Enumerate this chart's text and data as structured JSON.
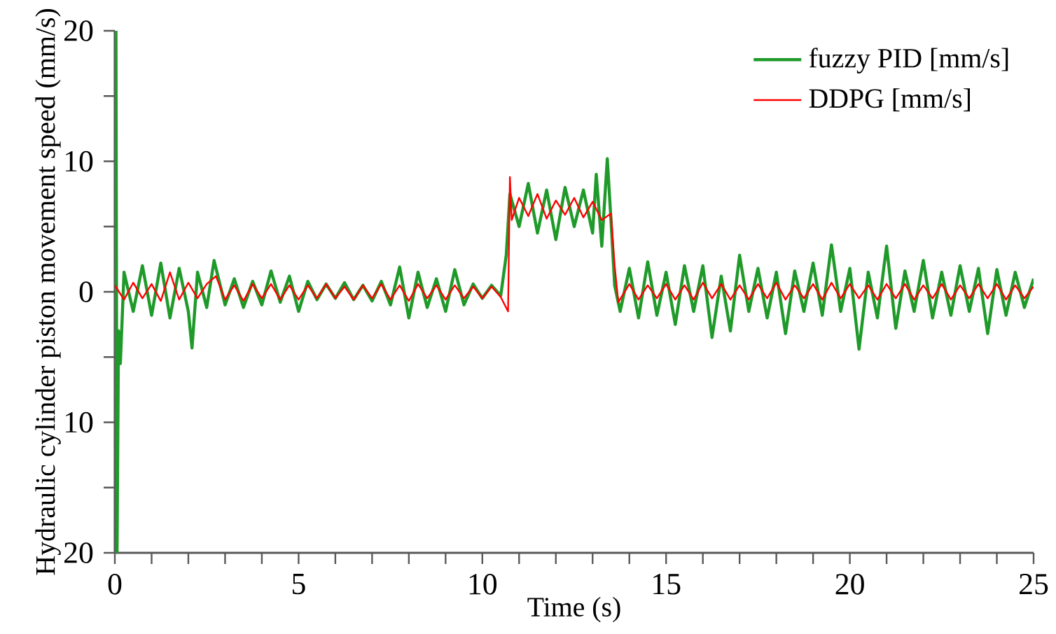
{
  "chart_data": {
    "type": "line",
    "xlabel": "Time (s)",
    "ylabel": "Hydraulic cylinder piston movement speed (mm/s)",
    "xlim": [
      0,
      25
    ],
    "ylim": [
      -20,
      20
    ],
    "xticks": [
      0,
      {
        "value": 1,
        "label": null
      },
      {
        "value": 2,
        "label": null
      },
      {
        "value": 3,
        "label": null
      },
      {
        "value": 4,
        "label": null
      },
      5,
      {
        "value": 6,
        "label": null
      },
      {
        "value": 7,
        "label": null
      },
      {
        "value": 8,
        "label": null
      },
      {
        "value": 9,
        "label": null
      },
      10,
      {
        "value": 11,
        "label": null
      },
      {
        "value": 12,
        "label": null
      },
      {
        "value": 13,
        "label": null
      },
      {
        "value": 14,
        "label": null
      },
      15,
      {
        "value": 16,
        "label": null
      },
      {
        "value": 17,
        "label": null
      },
      {
        "value": 18,
        "label": null
      },
      {
        "value": 19,
        "label": null
      },
      20,
      {
        "value": 21,
        "label": null
      },
      {
        "value": 22,
        "label": null
      },
      {
        "value": 23,
        "label": null
      },
      {
        "value": 24,
        "label": null
      },
      25
    ],
    "yticks": [
      {
        "value": -20,
        "label": "20"
      },
      {
        "value": -15,
        "label": null
      },
      {
        "value": -10,
        "label": "10"
      },
      {
        "value": -5,
        "label": null
      },
      0,
      {
        "value": 5,
        "label": null
      },
      10,
      {
        "value": 15,
        "label": null
      },
      20
    ],
    "grid": false,
    "legend": "top right",
    "marker": "none",
    "line_style": "solid",
    "series": [
      {
        "name": "fuzzy PID [mm/s]",
        "color": "#1f9a2a",
        "x": [
          0,
          0.03,
          0.06,
          0.1,
          0.15,
          0.2,
          0.25,
          0.5,
          0.75,
          1.0,
          1.25,
          1.5,
          1.75,
          2.0,
          2.1,
          2.25,
          2.5,
          2.7,
          3.0,
          3.25,
          3.5,
          3.75,
          4.0,
          4.25,
          4.5,
          4.75,
          5.0,
          5.25,
          5.5,
          5.75,
          6.0,
          6.25,
          6.5,
          6.75,
          7.0,
          7.25,
          7.5,
          7.75,
          8.0,
          8.25,
          8.5,
          8.75,
          9.0,
          9.25,
          9.5,
          9.75,
          10.0,
          10.25,
          10.5,
          10.65,
          10.75,
          11.0,
          11.25,
          11.5,
          11.75,
          12.0,
          12.25,
          12.5,
          12.75,
          13.0,
          13.1,
          13.25,
          13.4,
          13.5,
          13.6,
          13.75,
          14.0,
          14.25,
          14.5,
          14.75,
          15.0,
          15.25,
          15.5,
          15.75,
          16.0,
          16.25,
          16.5,
          16.75,
          17.0,
          17.25,
          17.5,
          17.75,
          18.0,
          18.25,
          18.5,
          18.75,
          19.0,
          19.25,
          19.5,
          19.75,
          20.0,
          20.25,
          20.5,
          20.75,
          21.0,
          21.25,
          21.5,
          21.75,
          22.0,
          22.25,
          22.5,
          22.75,
          23.0,
          23.25,
          23.5,
          23.75,
          24.0,
          24.25,
          24.5,
          24.75,
          25.0
        ],
        "values": [
          0,
          20,
          -20,
          -3,
          -5.5,
          -2,
          1.5,
          -1.5,
          2,
          -1.8,
          2.2,
          -2,
          1.8,
          -1.5,
          -4.3,
          1.5,
          -1.2,
          2.4,
          -1.0,
          1.0,
          -1.2,
          0.8,
          -1.0,
          1.6,
          -0.8,
          1.2,
          -1.5,
          0.8,
          -0.6,
          0.6,
          -0.5,
          0.7,
          -0.6,
          0.5,
          -0.7,
          0.8,
          -1.0,
          1.9,
          -2.0,
          1.5,
          -1.2,
          1.0,
          -1.5,
          1.7,
          -1.0,
          0.6,
          -0.5,
          0.5,
          -0.3,
          2.8,
          7.5,
          5.0,
          8.3,
          4.5,
          7.8,
          4.0,
          8.0,
          5.0,
          7.8,
          4.5,
          9.0,
          3.5,
          10.2,
          5.5,
          0.5,
          -1.5,
          1.8,
          -2.0,
          2.3,
          -1.8,
          1.5,
          -2.5,
          2.0,
          -1.5,
          2.0,
          -3.5,
          1.2,
          -3.0,
          2.8,
          -1.5,
          1.8,
          -2.0,
          1.5,
          -3.2,
          1.6,
          -1.5,
          2.2,
          -1.8,
          3.6,
          -1.5,
          1.8,
          -4.4,
          1.5,
          -2.0,
          3.5,
          -2.8,
          1.6,
          -1.5,
          2.4,
          -2.0,
          1.5,
          -1.8,
          2.0,
          -1.5,
          1.8,
          -3.2,
          1.7,
          -1.8,
          1.5,
          -1.2,
          1.0
        ]
      },
      {
        "name": "DDPG [mm/s]",
        "color": "#ff0000",
        "x": [
          0,
          0.25,
          0.5,
          0.75,
          1.0,
          1.25,
          1.5,
          1.75,
          2.0,
          2.25,
          2.5,
          2.75,
          3.0,
          3.25,
          3.5,
          3.75,
          4.0,
          4.25,
          4.5,
          4.75,
          5.0,
          5.25,
          5.5,
          5.75,
          6.0,
          6.25,
          6.5,
          6.75,
          7.0,
          7.25,
          7.5,
          7.75,
          8.0,
          8.25,
          8.5,
          8.75,
          9.0,
          9.25,
          9.5,
          9.75,
          10.0,
          10.25,
          10.5,
          10.7,
          10.75,
          10.8,
          11.0,
          11.25,
          11.5,
          11.75,
          12.0,
          12.25,
          12.5,
          12.75,
          13.0,
          13.25,
          13.5,
          13.6,
          13.7,
          14.0,
          14.25,
          14.5,
          14.75,
          15.0,
          15.25,
          15.5,
          15.75,
          16.0,
          16.25,
          16.5,
          16.75,
          17.0,
          17.25,
          17.5,
          17.75,
          18.0,
          18.25,
          18.5,
          18.75,
          19.0,
          19.25,
          19.5,
          19.75,
          20.0,
          20.25,
          20.5,
          20.75,
          21.0,
          21.25,
          21.5,
          21.75,
          22.0,
          22.25,
          22.5,
          22.75,
          23.0,
          23.25,
          23.5,
          23.75,
          24.0,
          24.25,
          24.5,
          24.75,
          25.0
        ],
        "values": [
          0.5,
          -0.6,
          0.7,
          -0.5,
          0.6,
          -0.7,
          1.5,
          -0.6,
          0.7,
          -0.5,
          0.6,
          1.2,
          -0.6,
          0.5,
          -0.7,
          0.6,
          -0.5,
          0.6,
          -0.6,
          0.5,
          -0.6,
          0.5,
          -0.5,
          0.6,
          -0.5,
          0.4,
          -0.6,
          0.5,
          -0.5,
          0.6,
          -0.6,
          0.5,
          -0.7,
          0.6,
          -0.5,
          0.5,
          -0.6,
          0.5,
          -0.5,
          0.4,
          -0.5,
          0.4,
          -0.4,
          -1.5,
          8.8,
          5.5,
          7.2,
          5.8,
          7.5,
          5.6,
          7.0,
          5.9,
          7.2,
          5.7,
          6.9,
          5.5,
          6.0,
          2.0,
          -0.8,
          0.6,
          -0.6,
          0.5,
          -0.5,
          0.6,
          -0.6,
          0.5,
          -0.6,
          0.7,
          -0.5,
          0.6,
          -0.6,
          0.5,
          -0.6,
          0.6,
          -0.5,
          0.7,
          -0.6,
          0.5,
          -0.5,
          0.6,
          -0.6,
          0.7,
          -0.5,
          0.6,
          -0.5,
          0.5,
          -0.6,
          0.6,
          -0.5,
          0.6,
          -0.6,
          0.5,
          -0.5,
          0.6,
          -0.6,
          0.5,
          -0.5,
          0.6,
          -0.5,
          0.6,
          -0.6,
          0.5,
          -0.5,
          0.4
        ]
      }
    ]
  }
}
